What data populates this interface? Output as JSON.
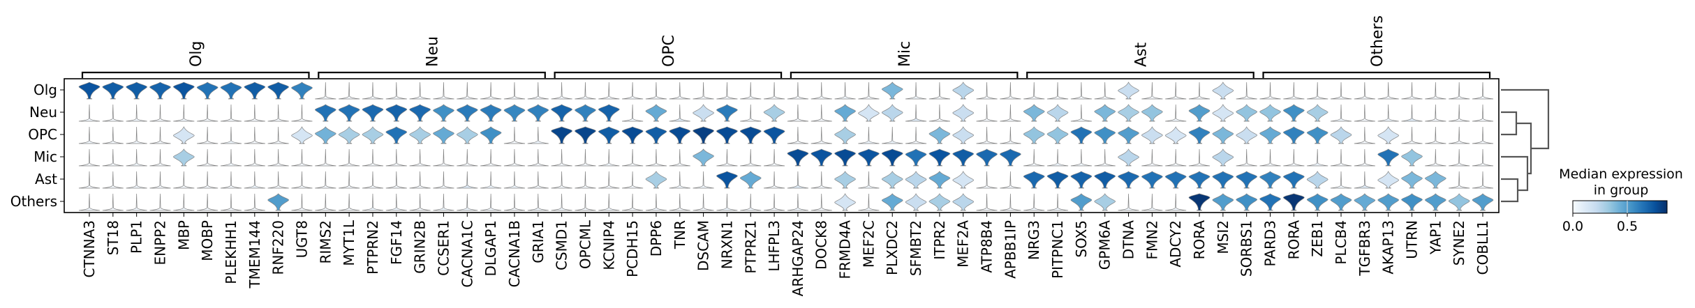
{
  "chart_data": {
    "type": "stacked-violin",
    "row_groups": [
      "Olg",
      "Neu",
      "OPC",
      "Mic",
      "Ast",
      "Others"
    ],
    "gene_groups": [
      {
        "label": "Olg",
        "genes": [
          "CTNNA3",
          "ST18",
          "PLP1",
          "ENPP2",
          "MBP",
          "MOBP",
          "PLEKHH1",
          "TMEM144",
          "RNF220",
          "UGT8"
        ]
      },
      {
        "label": "Neu",
        "genes": [
          "RIMS2",
          "MYT1L",
          "PTPRN2",
          "FGF14",
          "GRIN2B",
          "CCSER1",
          "CACNA1C",
          "DLGAP1",
          "CACNA1B",
          "GRIA1"
        ]
      },
      {
        "label": "OPC",
        "genes": [
          "CSMD1",
          "OPCML",
          "KCNIP4",
          "PCDH15",
          "DPP6",
          "TNR",
          "DSCAM",
          "NRXN1",
          "PTPRZ1",
          "LHFPL3"
        ]
      },
      {
        "label": "Mic",
        "genes": [
          "ARHGAP24",
          "DOCK8",
          "FRMD4A",
          "MEF2C",
          "PLXDC2",
          "SFMBT2",
          "ITPR2",
          "MEF2A",
          "ATP8B4",
          "APBB1IP"
        ]
      },
      {
        "label": "Ast",
        "genes": [
          "NRG3",
          "PITPNC1",
          "SOX5",
          "GPM6A",
          "DTNA",
          "FMN2",
          "ADCY2",
          "RORA",
          "MSI2",
          "SORBS1"
        ]
      },
      {
        "label": "Others",
        "genes": [
          "PARD3",
          "RORA",
          "ZEB1",
          "PLCB4",
          "TGFBR3",
          "AKAP13",
          "UTRN",
          "YAP1",
          "SYNE2",
          "COBLL1"
        ]
      }
    ],
    "median_expression": {
      "Olg": [
        0.75,
        0.72,
        0.72,
        0.7,
        0.75,
        0.65,
        0.65,
        0.72,
        0.72,
        0.6,
        0,
        0,
        0,
        0,
        0,
        0,
        0,
        0,
        0,
        0,
        0,
        0,
        0,
        0,
        0,
        0,
        0,
        0,
        0,
        0,
        0,
        0,
        0.02,
        0,
        0.4,
        0.02,
        0,
        0.25,
        0,
        0,
        0,
        0,
        0,
        0,
        0.2,
        0,
        0,
        0,
        0.2,
        0,
        0,
        0,
        0,
        0,
        0,
        0,
        0,
        0,
        0,
        0
      ],
      "Neu": [
        0.02,
        0,
        0.02,
        0,
        0.02,
        0,
        0,
        0,
        0,
        0,
        0.65,
        0.65,
        0.68,
        0.7,
        0.68,
        0.55,
        0.62,
        0.62,
        0.58,
        0.6,
        0.7,
        0.6,
        0.7,
        0.02,
        0.45,
        0.1,
        0.2,
        0.62,
        0.02,
        0.3,
        0,
        0,
        0.45,
        0.15,
        0.25,
        0.1,
        0,
        0.2,
        0,
        0,
        0.4,
        0.25,
        0.02,
        0.4,
        0.3,
        0.35,
        0.02,
        0.5,
        0.15,
        0.35,
        0.35,
        0.55,
        0.3,
        0.05,
        0,
        0.05,
        0.1,
        0,
        0,
        0
      ],
      "OPC": [
        0.02,
        0,
        0.02,
        0,
        0.15,
        0,
        0.05,
        0,
        0,
        0.15,
        0.42,
        0.3,
        0.3,
        0.65,
        0.3,
        0.45,
        0.3,
        0.55,
        0,
        0.05,
        0.8,
        0.8,
        0.72,
        0.78,
        0.72,
        0.78,
        0.82,
        0.78,
        0.78,
        0.75,
        0,
        0,
        0.3,
        0.05,
        0.05,
        0,
        0.4,
        0.2,
        0,
        0,
        0.35,
        0.35,
        0.65,
        0.55,
        0.5,
        0.2,
        0.15,
        0.6,
        0.4,
        0.2,
        0.45,
        0.6,
        0.55,
        0.25,
        0,
        0.15,
        0,
        0,
        0,
        0
      ],
      "Mic": [
        0,
        0,
        0.02,
        0,
        0.3,
        0,
        0.02,
        0,
        0,
        0,
        0,
        0,
        0,
        0,
        0,
        0,
        0,
        0,
        0,
        0,
        0,
        0,
        0.02,
        0,
        0,
        0,
        0.4,
        0,
        0,
        0,
        0.78,
        0.75,
        0.78,
        0.75,
        0.78,
        0.65,
        0.75,
        0.72,
        0.68,
        0.68,
        0,
        0.05,
        0.02,
        0,
        0.25,
        0,
        0,
        0,
        0.25,
        0,
        0,
        0,
        0.05,
        0,
        0,
        0.65,
        0.35,
        0,
        0,
        0
      ],
      "Ast": [
        0,
        0,
        0.02,
        0,
        0,
        0,
        0,
        0.05,
        0,
        0,
        0,
        0,
        0,
        0,
        0,
        0,
        0.1,
        0.05,
        0.05,
        0,
        0,
        0,
        0,
        0,
        0.3,
        0.02,
        0.02,
        0.75,
        0.45,
        0,
        0.1,
        0,
        0.3,
        0.02,
        0.3,
        0.25,
        0.45,
        0.15,
        0,
        0,
        0.68,
        0.72,
        0.7,
        0.72,
        0.68,
        0.65,
        0.65,
        0.65,
        0.65,
        0.65,
        0.6,
        0.65,
        0.25,
        0.02,
        0.1,
        0.15,
        0.4,
        0.4,
        0,
        0
      ],
      "Others": [
        0.02,
        0,
        0.02,
        0,
        0.02,
        0,
        0,
        0,
        0.5,
        0,
        0,
        0,
        0.05,
        0.05,
        0,
        0.05,
        0.05,
        0.02,
        0,
        0.02,
        0.02,
        0,
        0.02,
        0,
        0.02,
        0,
        0,
        0.05,
        0.02,
        0,
        0.02,
        0,
        0.15,
        0.02,
        0.45,
        0.2,
        0.3,
        0.25,
        0,
        0,
        0.02,
        0.02,
        0.5,
        0.3,
        0.02,
        0.02,
        0.02,
        0.85,
        0.5,
        0.55,
        0.65,
        0.85,
        0.55,
        0.5,
        0.45,
        0.5,
        0.55,
        0.5,
        0.35,
        0.5
      ]
    },
    "dendrogram": "(Olg,((Neu,OPC),(Mic,(Ast,Others))))",
    "colorbar": {
      "title_line1": "Median expression",
      "title_line2": "in group",
      "colormap": "Blues",
      "range": [
        0.0,
        0.87
      ],
      "ticks": [
        "0.0",
        "0.5"
      ]
    },
    "colors": {
      "blues": [
        "#f7fbff",
        "#deebf7",
        "#c6dbef",
        "#9ecae1",
        "#6baed6",
        "#4292c6",
        "#2171b5",
        "#08519c",
        "#08306b"
      ],
      "violin_edge": "#808080",
      "dendrogram": "#555555"
    }
  }
}
